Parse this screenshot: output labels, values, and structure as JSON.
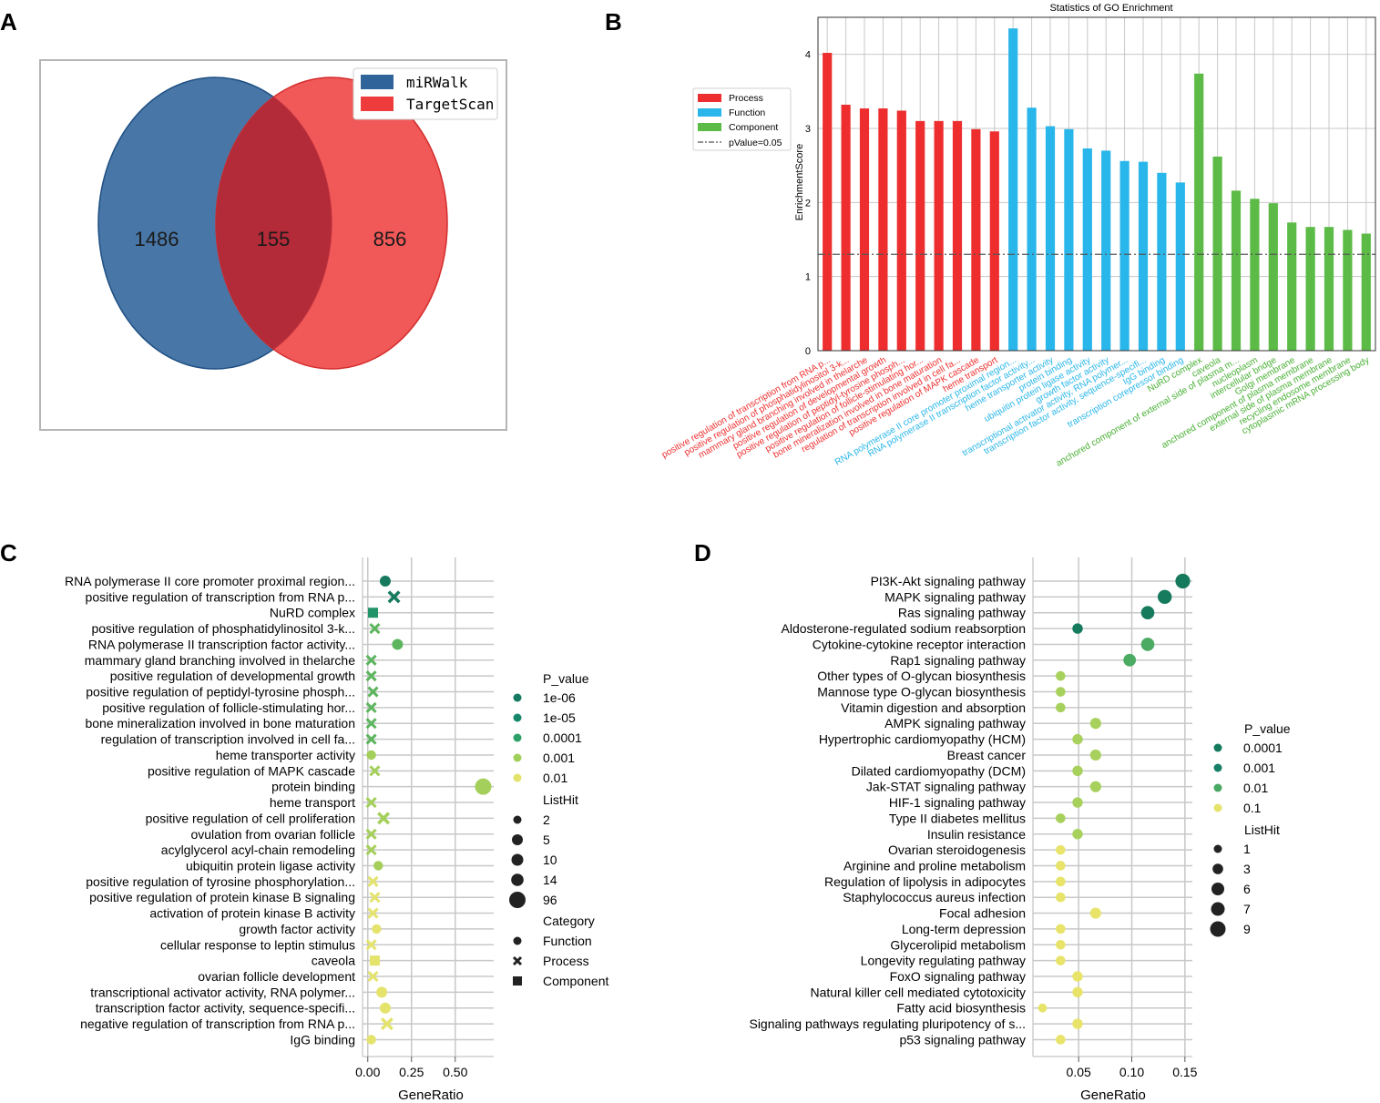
{
  "panel_labels": [
    "A",
    "B",
    "C",
    "D"
  ],
  "colors": {
    "mirwalk": "#2f639a",
    "targetscan": "#ee3b3b",
    "overlap": "#b32a38",
    "process": "#ee2e2e",
    "function": "#29b6ea",
    "component": "#5bbb46",
    "grid": "#c8c8c8"
  },
  "chart_data": [
    {
      "id": "venn",
      "type": "venn",
      "sets": [
        {
          "name": "miRWalk",
          "only": 1486
        },
        {
          "name": "TargetScan",
          "only": 856
        }
      ],
      "intersection": 155,
      "legend": [
        "miRWalk",
        "TargetScan"
      ]
    },
    {
      "id": "go_bar",
      "type": "bar",
      "title": "Statistics of GO Enrichment",
      "ylabel": "EnrichmentScore",
      "ylim": [
        0,
        4.5
      ],
      "yticks": [
        0,
        1,
        2,
        3,
        4
      ],
      "threshold": 1.3,
      "legend": [
        "Process",
        "Function",
        "Component",
        "pValue=0.05"
      ],
      "categories": [
        "positive regulation of transcription from RNA p...",
        "positive regulation of phosphatidylinositol 3-k...",
        "mammary gland branching involved in thelarche",
        "positive regulation of developmental growth",
        "positive regulation of peptidyl-tyrosine phosph...",
        "positive regulation of follicle-stimulating hor...",
        "bone mineralization involved in bone maturation",
        "regulation of transcription involved in cell fa...",
        "positive regulation of MAPK cascade",
        "heme transport",
        "RNA polymerase II core promoter proximal region...",
        "RNA polymerase II transcription factor activity...",
        "heme transporter activity",
        "protein binding",
        "ubiquitin protein ligase activity",
        "growth factor activity",
        "transcriptional activator activity, RNA polymer...",
        "transcription factor activity, sequence-specifi...",
        "IgG binding",
        "transcription corepressor binding",
        "NuRD complex",
        "caveola",
        "anchored component of external side of plasma m...",
        "nucleoplasm",
        "intercellular bridge",
        "Golgi membrane",
        "anchored component of plasma membrane",
        "external side of plasma membrane",
        "recycling endosome membrane",
        "cytoplasmic mRNA processing body"
      ],
      "values": [
        4.02,
        3.32,
        3.27,
        3.27,
        3.24,
        3.1,
        3.1,
        3.1,
        2.99,
        2.96,
        4.35,
        3.28,
        3.03,
        2.99,
        2.73,
        2.7,
        2.56,
        2.55,
        2.4,
        2.27,
        3.74,
        2.62,
        2.16,
        2.05,
        1.99,
        1.73,
        1.67,
        1.67,
        1.63,
        1.58
      ],
      "groups": [
        "Process",
        "Process",
        "Process",
        "Process",
        "Process",
        "Process",
        "Process",
        "Process",
        "Process",
        "Process",
        "Function",
        "Function",
        "Function",
        "Function",
        "Function",
        "Function",
        "Function",
        "Function",
        "Function",
        "Function",
        "Component",
        "Component",
        "Component",
        "Component",
        "Component",
        "Component",
        "Component",
        "Component",
        "Component",
        "Component"
      ]
    },
    {
      "id": "go_dot",
      "type": "scatter",
      "xlabel": "GeneRatio",
      "xlim": [
        -0.03,
        0.72
      ],
      "xticks": [
        "0.00",
        "0.25",
        "0.50"
      ],
      "xtick_values": [
        0,
        0.25,
        0.5
      ],
      "legend_pvalue_title": "P_value",
      "legend_pvalue": [
        "1e-06",
        "1e-05",
        "0.0001",
        "0.001",
        "0.01"
      ],
      "legend_listhit_title": "ListHit",
      "legend_listhit": [
        "2",
        "5",
        "10",
        "14",
        "96"
      ],
      "legend_category_title": "Category",
      "legend_category": [
        "Function",
        "Process",
        "Component"
      ],
      "points": [
        {
          "term": "RNA polymerase II core promoter proximal region...",
          "x": 0.1,
          "cat": "Function",
          "p": 4,
          "size": 5
        },
        {
          "term": "positive regulation of transcription from RNA p...",
          "x": 0.15,
          "cat": "Process",
          "p": 4,
          "size": 5
        },
        {
          "term": "NuRD complex",
          "x": 0.03,
          "cat": "Component",
          "p": 3,
          "size": 3
        },
        {
          "term": "positive regulation of phosphatidylinositol 3-k...",
          "x": 0.04,
          "cat": "Process",
          "p": 2,
          "size": 2
        },
        {
          "term": "RNA polymerase II transcription factor activity...",
          "x": 0.17,
          "cat": "Function",
          "p": 2,
          "size": 5
        },
        {
          "term": "mammary gland branching involved in thelarche",
          "x": 0.02,
          "cat": "Process",
          "p": 2,
          "size": 2
        },
        {
          "term": "positive regulation of developmental growth",
          "x": 0.02,
          "cat": "Process",
          "p": 2,
          "size": 2
        },
        {
          "term": "positive regulation of peptidyl-tyrosine phosph...",
          "x": 0.03,
          "cat": "Process",
          "p": 2,
          "size": 2
        },
        {
          "term": "positive regulation of follicle-stimulating hor...",
          "x": 0.02,
          "cat": "Process",
          "p": 2,
          "size": 2
        },
        {
          "term": "bone mineralization involved in bone maturation",
          "x": 0.02,
          "cat": "Process",
          "p": 2,
          "size": 2
        },
        {
          "term": "regulation of transcription involved in cell fa...",
          "x": 0.02,
          "cat": "Process",
          "p": 2,
          "size": 2
        },
        {
          "term": "heme transporter activity",
          "x": 0.02,
          "cat": "Function",
          "p": 1,
          "size": 2
        },
        {
          "term": "positive regulation of MAPK cascade",
          "x": 0.04,
          "cat": "Process",
          "p": 1,
          "size": 2
        },
        {
          "term": "protein binding",
          "x": 0.66,
          "cat": "Function",
          "p": 1,
          "size": 96
        },
        {
          "term": "heme transport",
          "x": 0.02,
          "cat": "Process",
          "p": 1,
          "size": 2
        },
        {
          "term": "positive regulation of cell proliferation",
          "x": 0.09,
          "cat": "Process",
          "p": 1,
          "size": 5
        },
        {
          "term": "ovulation from ovarian follicle",
          "x": 0.02,
          "cat": "Process",
          "p": 1,
          "size": 2
        },
        {
          "term": "acylglycerol acyl-chain remodeling",
          "x": 0.02,
          "cat": "Process",
          "p": 1,
          "size": 2
        },
        {
          "term": "ubiquitin protein ligase activity",
          "x": 0.06,
          "cat": "Function",
          "p": 1,
          "size": 2
        },
        {
          "term": "positive regulation of tyrosine phosphorylation...",
          "x": 0.03,
          "cat": "Process",
          "p": 0,
          "size": 2
        },
        {
          "term": "positive regulation of protein kinase B signaling",
          "x": 0.04,
          "cat": "Process",
          "p": 0,
          "size": 2
        },
        {
          "term": "activation of protein kinase B activity",
          "x": 0.03,
          "cat": "Process",
          "p": 0,
          "size": 2
        },
        {
          "term": "growth factor activity",
          "x": 0.05,
          "cat": "Function",
          "p": 0,
          "size": 2
        },
        {
          "term": "cellular response to leptin stimulus",
          "x": 0.02,
          "cat": "Process",
          "p": 0,
          "size": 2
        },
        {
          "term": "caveola",
          "x": 0.04,
          "cat": "Component",
          "p": 0,
          "size": 3
        },
        {
          "term": "ovarian follicle development",
          "x": 0.03,
          "cat": "Process",
          "p": 0,
          "size": 2
        },
        {
          "term": "transcriptional activator activity, RNA polymer...",
          "x": 0.08,
          "cat": "Function",
          "p": 0,
          "size": 5
        },
        {
          "term": "transcription factor activity, sequence-specifi...",
          "x": 0.1,
          "cat": "Function",
          "p": 0,
          "size": 5
        },
        {
          "term": "negative regulation of transcription from RNA p...",
          "x": 0.11,
          "cat": "Process",
          "p": 0,
          "size": 5
        },
        {
          "term": "IgG binding",
          "x": 0.02,
          "cat": "Function",
          "p": 0,
          "size": 2
        }
      ]
    },
    {
      "id": "kegg_dot",
      "type": "scatter",
      "xlabel": "GeneRatio",
      "xlim": [
        0.007,
        0.157
      ],
      "xticks": [
        "0.05",
        "0.10",
        "0.15"
      ],
      "xtick_values": [
        0.05,
        0.1,
        0.15
      ],
      "legend_pvalue_title": "P_value",
      "legend_pvalue": [
        "0.0001",
        "0.001",
        "0.01",
        "0.1"
      ],
      "legend_listhit_title": "ListHit",
      "legend_listhit": [
        "1",
        "3",
        "6",
        "7",
        "9"
      ],
      "points": [
        {
          "term": "PI3K-Akt signaling pathway",
          "x": 0.148,
          "p": 3,
          "size": 9
        },
        {
          "term": "MAPK signaling pathway",
          "x": 0.131,
          "p": 3,
          "size": 8
        },
        {
          "term": "Ras signaling pathway",
          "x": 0.115,
          "p": 3,
          "size": 7
        },
        {
          "term": "Aldosterone-regulated sodium reabsorption",
          "x": 0.049,
          "p": 3,
          "size": 3
        },
        {
          "term": "Cytokine-cytokine receptor interaction",
          "x": 0.115,
          "p": 2,
          "size": 7
        },
        {
          "term": "Rap1 signaling pathway",
          "x": 0.098,
          "p": 2,
          "size": 6
        },
        {
          "term": "Other types of O-glycan biosynthesis",
          "x": 0.033,
          "p": 1,
          "size": 2
        },
        {
          "term": "Mannose type O-glycan biosynthesis",
          "x": 0.033,
          "p": 1,
          "size": 2
        },
        {
          "term": "Vitamin digestion and absorption",
          "x": 0.033,
          "p": 1,
          "size": 2
        },
        {
          "term": "AMPK signaling pathway",
          "x": 0.066,
          "p": 1,
          "size": 4
        },
        {
          "term": "Hypertrophic cardiomyopathy (HCM)",
          "x": 0.049,
          "p": 1,
          "size": 3
        },
        {
          "term": "Breast cancer",
          "x": 0.066,
          "p": 1,
          "size": 4
        },
        {
          "term": "Dilated cardiomyopathy (DCM)",
          "x": 0.049,
          "p": 1,
          "size": 3
        },
        {
          "term": "Jak-STAT signaling pathway",
          "x": 0.066,
          "p": 1,
          "size": 4
        },
        {
          "term": "HIF-1 signaling pathway",
          "x": 0.049,
          "p": 1,
          "size": 3
        },
        {
          "term": "Type II diabetes mellitus",
          "x": 0.033,
          "p": 1,
          "size": 2
        },
        {
          "term": "Insulin resistance",
          "x": 0.049,
          "p": 1,
          "size": 3
        },
        {
          "term": "Ovarian steroidogenesis",
          "x": 0.033,
          "p": 0,
          "size": 2
        },
        {
          "term": "Arginine and proline metabolism",
          "x": 0.033,
          "p": 0,
          "size": 2
        },
        {
          "term": "Regulation of lipolysis in adipocytes",
          "x": 0.033,
          "p": 0,
          "size": 2
        },
        {
          "term": "Staphylococcus aureus infection",
          "x": 0.033,
          "p": 0,
          "size": 2
        },
        {
          "term": "Focal adhesion",
          "x": 0.066,
          "p": 0,
          "size": 4
        },
        {
          "term": "Long-term depression",
          "x": 0.033,
          "p": 0,
          "size": 2
        },
        {
          "term": "Glycerolipid metabolism",
          "x": 0.033,
          "p": 0,
          "size": 2
        },
        {
          "term": "Longevity regulating pathway",
          "x": 0.033,
          "p": 0,
          "size": 2
        },
        {
          "term": "FoxO signaling pathway",
          "x": 0.049,
          "p": 0,
          "size": 3
        },
        {
          "term": "Natural killer cell mediated cytotoxicity",
          "x": 0.049,
          "p": 0,
          "size": 3
        },
        {
          "term": "Fatty acid biosynthesis",
          "x": 0.016,
          "p": 0,
          "size": 1
        },
        {
          "term": "Signaling pathways regulating pluripotency of s...",
          "x": 0.049,
          "p": 0,
          "size": 3
        },
        {
          "term": "p53 signaling pathway",
          "x": 0.033,
          "p": 0,
          "size": 2
        }
      ]
    }
  ]
}
